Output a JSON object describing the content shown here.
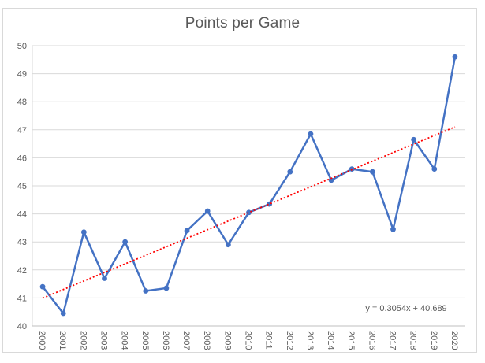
{
  "colors": {
    "series": "#4472C4",
    "trendline": "#FF0000",
    "gridline": "#D9D9D9",
    "axis": "#BFBFBF",
    "text": "#595959",
    "border": "#D9D9D9",
    "background": "#FFFFFF"
  },
  "chart_data": {
    "type": "line",
    "title": "Points per Game",
    "categories": [
      "2000",
      "2001",
      "2002",
      "2003",
      "2004",
      "2005",
      "2006",
      "2007",
      "2008",
      "2009",
      "2010",
      "2011",
      "2012",
      "2013",
      "2014",
      "2015",
      "2016",
      "2017",
      "2018",
      "2019",
      "2020"
    ],
    "series": [
      {
        "name": "Points per Game",
        "values": [
          41.4,
          40.45,
          43.35,
          41.7,
          43.0,
          41.25,
          41.35,
          43.4,
          44.1,
          42.9,
          44.05,
          44.35,
          45.5,
          46.85,
          45.2,
          45.6,
          45.5,
          43.45,
          46.65,
          45.6,
          49.6
        ]
      }
    ],
    "trendline": {
      "label": "y = 0.3054x + 40.689",
      "slope": 0.3054,
      "intercept": 40.689,
      "style": "dotted",
      "color": "#FF0000"
    },
    "xlabel": "",
    "ylabel": "",
    "ylim": [
      40,
      50
    ],
    "yticks": [
      40,
      41,
      42,
      43,
      44,
      45,
      46,
      47,
      48,
      49,
      50
    ],
    "grid": true,
    "legend": "none",
    "marker": "circle",
    "x_label_rotation_deg": 90
  }
}
